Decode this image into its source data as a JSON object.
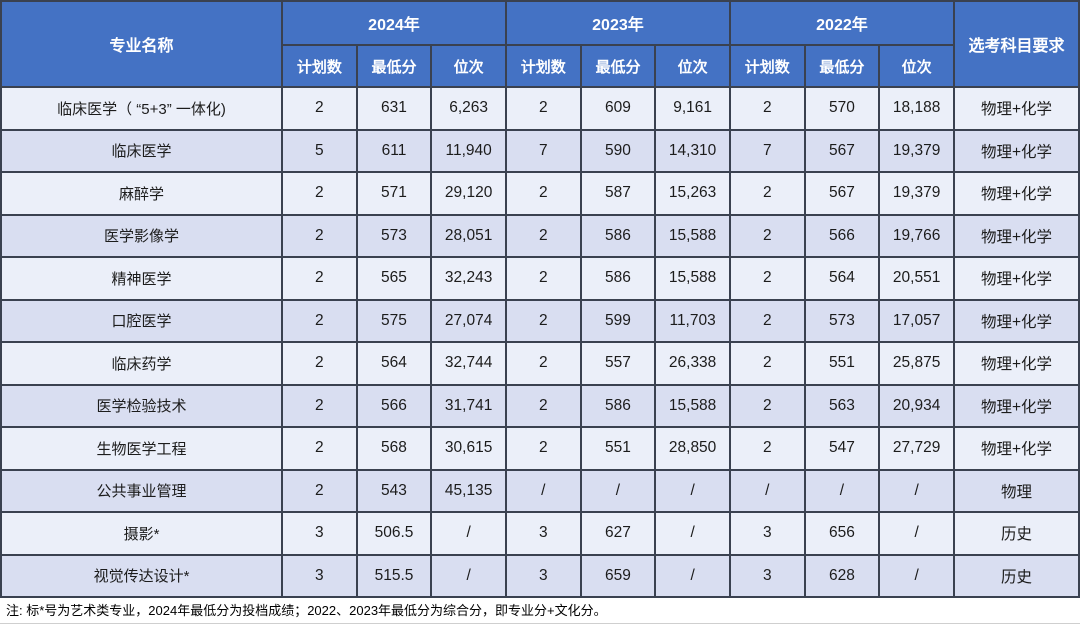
{
  "colors": {
    "header_bg": "#4472C4",
    "header_text": "#FFFFFF",
    "row_light": "#EBEFF9",
    "row_dark": "#D9DEF1",
    "border": "#3A4150"
  },
  "table": {
    "name_header": "专业名称",
    "subject_header": "选考科目要求",
    "year_groups": [
      "2024年",
      "2023年",
      "2022年"
    ],
    "sub_headers": [
      "计划数",
      "最低分",
      "位次"
    ],
    "rows": [
      {
        "name": "临床医学（ “5+3” 一体化)",
        "y2024": [
          "2",
          "631",
          "6,263"
        ],
        "y2023": [
          "2",
          "609",
          "9,161"
        ],
        "y2022": [
          "2",
          "570",
          "18,188"
        ],
        "subjects": "物理+化学"
      },
      {
        "name": "临床医学",
        "y2024": [
          "5",
          "611",
          "11,940"
        ],
        "y2023": [
          "7",
          "590",
          "14,310"
        ],
        "y2022": [
          "7",
          "567",
          "19,379"
        ],
        "subjects": "物理+化学"
      },
      {
        "name": "麻醉学",
        "y2024": [
          "2",
          "571",
          "29,120"
        ],
        "y2023": [
          "2",
          "587",
          "15,263"
        ],
        "y2022": [
          "2",
          "567",
          "19,379"
        ],
        "subjects": "物理+化学"
      },
      {
        "name": "医学影像学",
        "y2024": [
          "2",
          "573",
          "28,051"
        ],
        "y2023": [
          "2",
          "586",
          "15,588"
        ],
        "y2022": [
          "2",
          "566",
          "19,766"
        ],
        "subjects": "物理+化学"
      },
      {
        "name": "精神医学",
        "y2024": [
          "2",
          "565",
          "32,243"
        ],
        "y2023": [
          "2",
          "586",
          "15,588"
        ],
        "y2022": [
          "2",
          "564",
          "20,551"
        ],
        "subjects": "物理+化学"
      },
      {
        "name": "口腔医学",
        "y2024": [
          "2",
          "575",
          "27,074"
        ],
        "y2023": [
          "2",
          "599",
          "11,703"
        ],
        "y2022": [
          "2",
          "573",
          "17,057"
        ],
        "subjects": "物理+化学"
      },
      {
        "name": "临床药学",
        "y2024": [
          "2",
          "564",
          "32,744"
        ],
        "y2023": [
          "2",
          "557",
          "26,338"
        ],
        "y2022": [
          "2",
          "551",
          "25,875"
        ],
        "subjects": "物理+化学"
      },
      {
        "name": "医学检验技术",
        "y2024": [
          "2",
          "566",
          "31,741"
        ],
        "y2023": [
          "2",
          "586",
          "15,588"
        ],
        "y2022": [
          "2",
          "563",
          "20,934"
        ],
        "subjects": "物理+化学"
      },
      {
        "name": "生物医学工程",
        "y2024": [
          "2",
          "568",
          "30,615"
        ],
        "y2023": [
          "2",
          "551",
          "28,850"
        ],
        "y2022": [
          "2",
          "547",
          "27,729"
        ],
        "subjects": "物理+化学"
      },
      {
        "name": "公共事业管理",
        "y2024": [
          "2",
          "543",
          "45,135"
        ],
        "y2023": [
          "/",
          "/",
          "/"
        ],
        "y2022": [
          "/",
          "/",
          "/"
        ],
        "subjects": "物理"
      },
      {
        "name": "摄影*",
        "y2024": [
          "3",
          "506.5",
          "/"
        ],
        "y2023": [
          "3",
          "627",
          "/"
        ],
        "y2022": [
          "3",
          "656",
          "/"
        ],
        "subjects": "历史"
      },
      {
        "name": "视觉传达设计*",
        "y2024": [
          "3",
          "515.5",
          "/"
        ],
        "y2023": [
          "3",
          "659",
          "/"
        ],
        "y2022": [
          "3",
          "628",
          "/"
        ],
        "subjects": "历史"
      }
    ]
  },
  "note": "注: 标*号为艺术类专业，2024年最低分为投档成绩；2022、2023年最低分为综合分，即专业分+文化分。"
}
